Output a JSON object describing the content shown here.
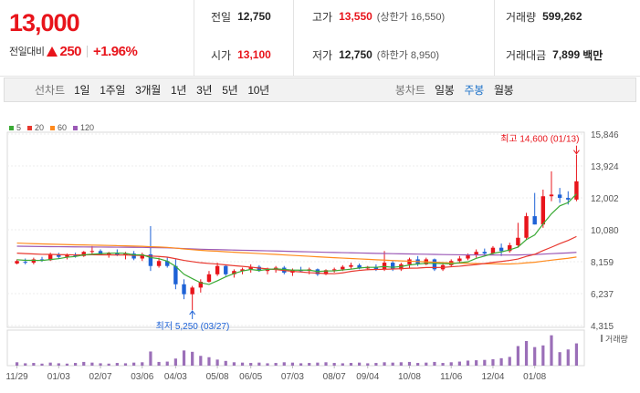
{
  "quote": {
    "price": "13,000",
    "change_label": "전일대비",
    "change_value": "250",
    "change_pct": "+1.96%",
    "prev_close_label": "전일",
    "prev_close": "12,750",
    "open_label": "시가",
    "open": "13,100",
    "high_label": "고가",
    "high": "13,550",
    "upper_limit": "(상한가 16,550)",
    "low_label": "저가",
    "low": "12,750",
    "lower_limit": "(하한가 8,950)",
    "volume_label": "거래량",
    "volume": "599,262",
    "amount_label": "거래대금",
    "amount": "7,899",
    "amount_unit": "백만"
  },
  "toolbar": {
    "line_label": "선차트",
    "line_ranges": [
      "1일",
      "1주일",
      "3개월",
      "1년",
      "3년",
      "5년",
      "10년"
    ],
    "candle_label": "봉차트",
    "candle_ranges": [
      "일봉",
      "주봉",
      "월봉"
    ],
    "active_candle": "주봉"
  },
  "colors": {
    "up": "#e8141b",
    "down": "#1e62d6",
    "ma5": "#3aaa35",
    "ma20": "#e8382f",
    "ma60": "#ff8a1c",
    "ma120": "#9b59b6",
    "volume": "#9b6fb8"
  },
  "chart_data": {
    "type": "candlestick",
    "legend": [
      "5",
      "20",
      "60",
      "120"
    ],
    "y_ticks": [
      "15,846",
      "13,924",
      "12,002",
      "10,080",
      "8,159",
      "6,237",
      "4,315"
    ],
    "y_range": [
      4315,
      15846
    ],
    "x_ticks": [
      "11/29",
      "01/03",
      "02/07",
      "03/06",
      "04/03",
      "05/08",
      "06/05",
      "07/03",
      "08/07",
      "09/04",
      "10/08",
      "11/06",
      "12/04",
      "01/08"
    ],
    "volume_label": "거래량",
    "annotation_high": "최고 14,600 (01/13)",
    "annotation_low": "최저 5,250 (03/27)",
    "candles": [
      [
        8050,
        8300,
        8000,
        8200
      ],
      [
        8150,
        8350,
        8000,
        8100
      ],
      [
        8100,
        8400,
        8000,
        8300
      ],
      [
        8300,
        8450,
        8150,
        8250
      ],
      [
        8250,
        8700,
        8200,
        8600
      ],
      [
        8600,
        8700,
        8350,
        8450
      ],
      [
        8450,
        8650,
        8300,
        8550
      ],
      [
        8550,
        8700,
        8400,
        8500
      ],
      [
        8500,
        8800,
        8450,
        8750
      ],
      [
        8750,
        9100,
        8600,
        8800
      ],
      [
        8800,
        8900,
        8550,
        8600
      ],
      [
        8600,
        8750,
        8400,
        8700
      ],
      [
        8700,
        8900,
        8500,
        8550
      ],
      [
        8550,
        8750,
        8300,
        8650
      ],
      [
        8650,
        8800,
        8250,
        8350
      ],
      [
        8350,
        8700,
        8200,
        8600
      ],
      [
        8600,
        10300,
        7600,
        7900
      ],
      [
        7900,
        8400,
        7800,
        8200
      ],
      [
        8200,
        8450,
        7800,
        7900
      ],
      [
        7900,
        8300,
        6500,
        6800
      ],
      [
        6800,
        7100,
        5900,
        6200
      ],
      [
        6200,
        6700,
        5250,
        6600
      ],
      [
        6600,
        7100,
        6300,
        6950
      ],
      [
        6950,
        7600,
        6900,
        7400
      ],
      [
        7400,
        8100,
        7300,
        7900
      ],
      [
        7900,
        8000,
        7300,
        7400
      ],
      [
        7400,
        7700,
        7200,
        7600
      ],
      [
        7600,
        7800,
        7400,
        7700
      ],
      [
        7700,
        8000,
        7500,
        7850
      ],
      [
        7850,
        7950,
        7550,
        7600
      ],
      [
        7600,
        7800,
        7400,
        7700
      ],
      [
        7700,
        7900,
        7500,
        7800
      ],
      [
        7800,
        7900,
        7400,
        7500
      ],
      [
        7500,
        7750,
        7300,
        7650
      ],
      [
        7650,
        7850,
        7550,
        7600
      ],
      [
        7600,
        7800,
        7400,
        7700
      ],
      [
        7700,
        7750,
        7300,
        7400
      ],
      [
        7400,
        7700,
        7350,
        7650
      ],
      [
        7650,
        7800,
        7500,
        7700
      ],
      [
        7700,
        7950,
        7600,
        7850
      ],
      [
        7850,
        8100,
        7700,
        7950
      ],
      [
        7950,
        8050,
        7700,
        7750
      ],
      [
        7750,
        7900,
        7650,
        7850
      ],
      [
        7850,
        8000,
        7600,
        7700
      ],
      [
        7700,
        8800,
        7600,
        8100
      ],
      [
        8100,
        8200,
        7600,
        7700
      ],
      [
        7700,
        8100,
        7600,
        8000
      ],
      [
        8000,
        8400,
        7800,
        8300
      ],
      [
        8300,
        8500,
        7900,
        8000
      ],
      [
        8000,
        8400,
        7950,
        8300
      ],
      [
        8300,
        8350,
        7600,
        7700
      ],
      [
        7700,
        8050,
        7600,
        7950
      ],
      [
        7950,
        8300,
        7850,
        8200
      ],
      [
        8200,
        8500,
        8100,
        8350
      ],
      [
        8350,
        8650,
        8250,
        8550
      ],
      [
        8550,
        8900,
        8400,
        8750
      ],
      [
        8750,
        8950,
        8500,
        8650
      ],
      [
        8650,
        9100,
        8600,
        9000
      ],
      [
        9000,
        9250,
        8500,
        8800
      ],
      [
        8800,
        9300,
        8700,
        9150
      ],
      [
        9150,
        10500,
        9000,
        9600
      ],
      [
        9600,
        11100,
        9500,
        10900
      ],
      [
        10900,
        12300,
        10400,
        10400
      ],
      [
        10400,
        12500,
        10200,
        12100
      ],
      [
        12100,
        13600,
        11800,
        12200
      ],
      [
        12200,
        12600,
        11700,
        12000
      ],
      [
        12000,
        12400,
        11600,
        11900
      ],
      [
        11900,
        14600,
        11800,
        13000
      ]
    ],
    "volume": [
      0.1,
      0.07,
      0.08,
      0.06,
      0.09,
      0.07,
      0.06,
      0.08,
      0.11,
      0.09,
      0.07,
      0.06,
      0.08,
      0.07,
      0.09,
      0.1,
      0.42,
      0.11,
      0.12,
      0.21,
      0.45,
      0.41,
      0.29,
      0.25,
      0.18,
      0.14,
      0.1,
      0.09,
      0.08,
      0.09,
      0.07,
      0.08,
      0.1,
      0.09,
      0.07,
      0.08,
      0.09,
      0.1,
      0.08,
      0.07,
      0.08,
      0.09,
      0.07,
      0.08,
      0.1,
      0.09,
      0.1,
      0.11,
      0.08,
      0.09,
      0.11,
      0.08,
      0.1,
      0.12,
      0.15,
      0.16,
      0.17,
      0.19,
      0.22,
      0.26,
      0.58,
      0.73,
      0.55,
      0.6,
      0.9,
      0.4,
      0.48,
      0.66
    ]
  }
}
